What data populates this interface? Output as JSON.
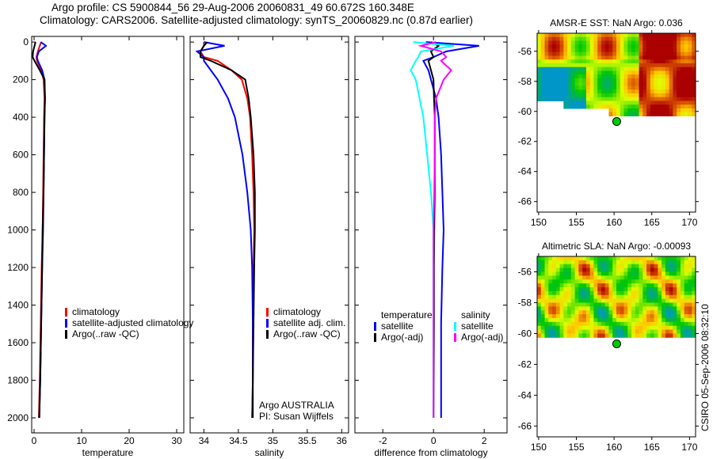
{
  "title_line1": "Argo profile: CS 5900844_56 29-Aug-2006 20060831_49 60.672S 160.348E",
  "title_line2": "Climatology: CARS2006. Satellite-adjusted climatology: synTS_20060829.nc (0.87d earlier)",
  "stamp": "CSIRO 05-Sep-2006 08:32:10",
  "colors": {
    "climatology": "#ff0000",
    "satellite": "#0000ff",
    "argo": "#000000",
    "sal_sat": "#00ffff",
    "sal_argo": "#ff00ff"
  },
  "chart_data": [
    {
      "type": "line",
      "name": "temperature-profile",
      "xlabel": "temperature",
      "xlim": [
        -0.5,
        31.5
      ],
      "ylim": [
        2080,
        -30
      ],
      "xticks": [
        0,
        10,
        20,
        30
      ],
      "yticks": [
        0,
        200,
        400,
        600,
        800,
        1000,
        1200,
        1400,
        1600,
        1800,
        2000
      ],
      "depth": [
        0,
        20,
        50,
        80,
        100,
        150,
        200,
        300,
        400,
        600,
        800,
        1000,
        1200,
        1500,
        1800,
        2000
      ],
      "series": [
        {
          "name": "climatology",
          "color": "#ff0000",
          "values": [
            1.5,
            1.2,
            0.8,
            0.5,
            0.6,
            1.5,
            2.0,
            2.2,
            2.1,
            2.0,
            1.9,
            1.8,
            1.6,
            1.4,
            1.2,
            1.0
          ]
        },
        {
          "name": "satellite-adjusted climatology",
          "color": "#0000ff",
          "values": [
            1.4,
            2.5,
            1.0,
            0.6,
            0.8,
            1.7,
            2.2,
            2.3,
            2.2,
            2.1,
            2.0,
            1.9,
            1.7,
            1.5,
            1.3,
            1.1
          ]
        },
        {
          "name": "Argo(..raw -QC)",
          "color": "#000000",
          "values": [
            0.3,
            0.1,
            -0.2,
            -0.3,
            0.1,
            1.2,
            2.2,
            2.3,
            2.2,
            2.1,
            2.0,
            1.8,
            1.7,
            1.5,
            1.3,
            1.1
          ]
        }
      ],
      "legend": [
        "climatology",
        "satellite-adjusted climatology",
        "Argo(..raw -QC)"
      ]
    },
    {
      "type": "line",
      "name": "salinity-profile",
      "xlabel": "salinity",
      "xlim": [
        33.8,
        36.1
      ],
      "ylim": [
        2080,
        -30
      ],
      "xticks": [
        34,
        34.5,
        35,
        35.5,
        36
      ],
      "xticklabels": [
        "34",
        "34.5",
        "35",
        "35.5",
        "36"
      ],
      "depth": [
        0,
        20,
        50,
        80,
        100,
        150,
        200,
        300,
        400,
        600,
        800,
        1000,
        1200,
        1500,
        1800,
        2000
      ],
      "series": [
        {
          "name": "climatology",
          "color": "#ff0000",
          "values": [
            34.0,
            34.0,
            33.95,
            34.0,
            34.2,
            34.4,
            34.55,
            34.63,
            34.67,
            34.7,
            34.72,
            34.73,
            34.72,
            34.71,
            34.71,
            34.7
          ]
        },
        {
          "name": "satellite adj. clim.",
          "color": "#0000ff",
          "values": [
            34.0,
            34.3,
            33.9,
            34.0,
            34.0,
            34.1,
            34.2,
            34.35,
            34.45,
            34.56,
            34.63,
            34.68,
            34.7,
            34.71,
            34.71,
            34.7
          ]
        },
        {
          "name": "Argo(..raw -QC)",
          "color": "#000000",
          "values": [
            34.05,
            34.0,
            33.95,
            33.95,
            34.1,
            34.4,
            34.6,
            34.65,
            34.68,
            34.72,
            34.74,
            34.74,
            34.73,
            34.72,
            34.71,
            34.71
          ]
        }
      ],
      "legend": [
        "climatology",
        "satellite adj. clim.",
        "Argo(..raw -QC)"
      ],
      "annotation": [
        "Argo AUSTRALIA",
        "PI: Susan Wijffels"
      ]
    },
    {
      "type": "line",
      "name": "difference-profile",
      "xlabel": "difference from climatology",
      "xlim": [
        -3.1,
        2.9
      ],
      "ylim": [
        2080,
        -30
      ],
      "xticks": [
        -2,
        0,
        2
      ],
      "depth": [
        0,
        20,
        50,
        80,
        100,
        150,
        200,
        300,
        400,
        600,
        800,
        1000,
        1200,
        1500,
        1800,
        2000
      ],
      "series": [
        {
          "name": "temperature satellite",
          "color": "#0000ff",
          "values": [
            -0.3,
            1.8,
            0.5,
            0,
            -0.4,
            -0.2,
            -0.1,
            0.1,
            0.2,
            0.3,
            0.35,
            0.4,
            0.35,
            0.3,
            0.3,
            0.3
          ]
        },
        {
          "name": "temperature Argo(-adj)",
          "color": "#000000",
          "values": [
            -0.1,
            0.2,
            -0.1,
            0.0,
            -0.2,
            -0.1,
            0.0,
            0.02,
            0.05,
            0.05,
            0.05,
            0.03,
            0.02,
            0.02,
            0.01,
            0.0
          ]
        },
        {
          "name": "salinity satellite",
          "color": "#00ffff",
          "values": [
            -0.8,
            0.8,
            -0.5,
            -0.6,
            -0.7,
            -0.9,
            -0.7,
            -0.55,
            -0.4,
            -0.25,
            -0.1,
            0,
            0,
            0,
            0,
            0
          ]
        },
        {
          "name": "salinity Argo(-adj)",
          "color": "#ff00ff",
          "values": [
            0.1,
            -0.5,
            0.3,
            0.5,
            0.3,
            0.7,
            0.4,
            0.1,
            0.05,
            0.05,
            0.03,
            0,
            0,
            0,
            0,
            0
          ]
        }
      ],
      "legend_headers": [
        "temperature",
        "salinity"
      ],
      "legend": [
        "satellite",
        "Argo(-adj)",
        "satellite",
        "Argo(-adj)"
      ]
    },
    {
      "type": "heatmap",
      "name": "amsr-sst-map",
      "title": "AMSR-E SST: NaN Argo: 0.036",
      "xlim": [
        149.8,
        170.8
      ],
      "ylim": [
        -66.7,
        -54.8
      ],
      "xticks": [
        150,
        155,
        160,
        165,
        170
      ],
      "yticks": [
        -56,
        -58,
        -60,
        -62,
        -64,
        -66
      ],
      "float": {
        "lon": 160.348,
        "lat": -60.672
      },
      "field": "sst"
    },
    {
      "type": "heatmap",
      "name": "altimetric-sla-map",
      "title": "Altimetric SLA: NaN Argo: -0.00093",
      "xlim": [
        149.8,
        170.8
      ],
      "ylim": [
        -66.7,
        -55.0
      ],
      "xticks": [
        150,
        155,
        160,
        165,
        170
      ],
      "yticks": [
        -56,
        -58,
        -60,
        -62,
        -64,
        -66
      ],
      "float": {
        "lon": 160.348,
        "lat": -60.672
      },
      "field": "sla"
    }
  ]
}
